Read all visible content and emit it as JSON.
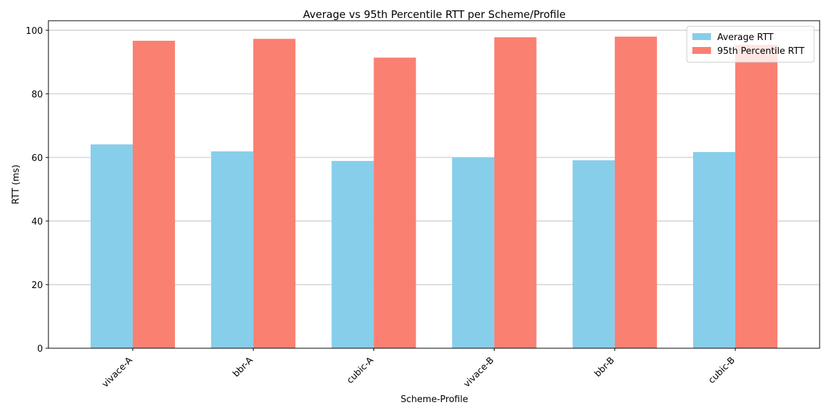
{
  "chart_data": {
    "type": "bar",
    "title": "Average vs 95th Percentile RTT per Scheme/Profile",
    "xlabel": "Scheme-Profile",
    "ylabel": "RTT (ms)",
    "categories": [
      "vivace-A",
      "bbr-A",
      "cubic-A",
      "vivace-B",
      "bbr-B",
      "cubic-B"
    ],
    "series": [
      {
        "name": "Average RTT",
        "color": "#87ceeb",
        "values": [
          64.1,
          61.9,
          58.9,
          60.1,
          59.1,
          61.7
        ]
      },
      {
        "name": "95th Percentile RTT",
        "color": "#fa8072",
        "values": [
          96.7,
          97.3,
          91.4,
          97.8,
          98.0,
          95.4
        ]
      }
    ],
    "ylim": [
      0,
      103
    ],
    "yticks": [
      0,
      20,
      40,
      60,
      80,
      100
    ],
    "grid": "y-major",
    "legend_position": "top-right",
    "x_tick_rotation": 45
  }
}
